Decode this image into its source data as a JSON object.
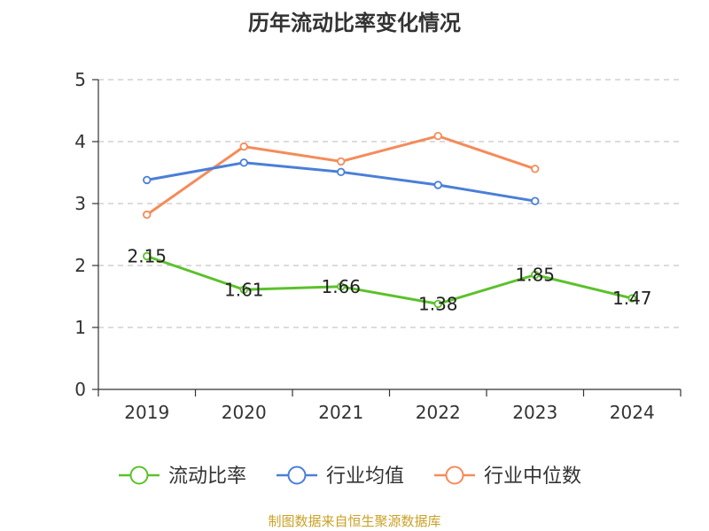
{
  "chart_data": {
    "type": "line",
    "title": "历年流动比率变化情况",
    "categories": [
      "2019",
      "2020",
      "2021",
      "2022",
      "2023",
      "2024"
    ],
    "ylim": [
      0,
      5
    ],
    "yticks": [
      0,
      1,
      2,
      3,
      4,
      5
    ],
    "grid": true,
    "legend_position": "bottom",
    "series": [
      {
        "name": "流动比率",
        "color": "#5cc12c",
        "values": [
          2.15,
          1.61,
          1.66,
          1.38,
          1.85,
          1.47
        ],
        "labels": [
          "2.15",
          "1.61",
          "1.66",
          "1.38",
          "1.85",
          "1.47"
        ]
      },
      {
        "name": "行业均值",
        "color": "#4a7fd8",
        "values": [
          3.38,
          3.66,
          3.51,
          3.3,
          3.04,
          null
        ]
      },
      {
        "name": "行业中位数",
        "color": "#f58b5a",
        "values": [
          2.82,
          3.92,
          3.68,
          4.09,
          3.56,
          null
        ]
      }
    ]
  },
  "footer": {
    "source": "制图数据来自恒生聚源数据库"
  }
}
